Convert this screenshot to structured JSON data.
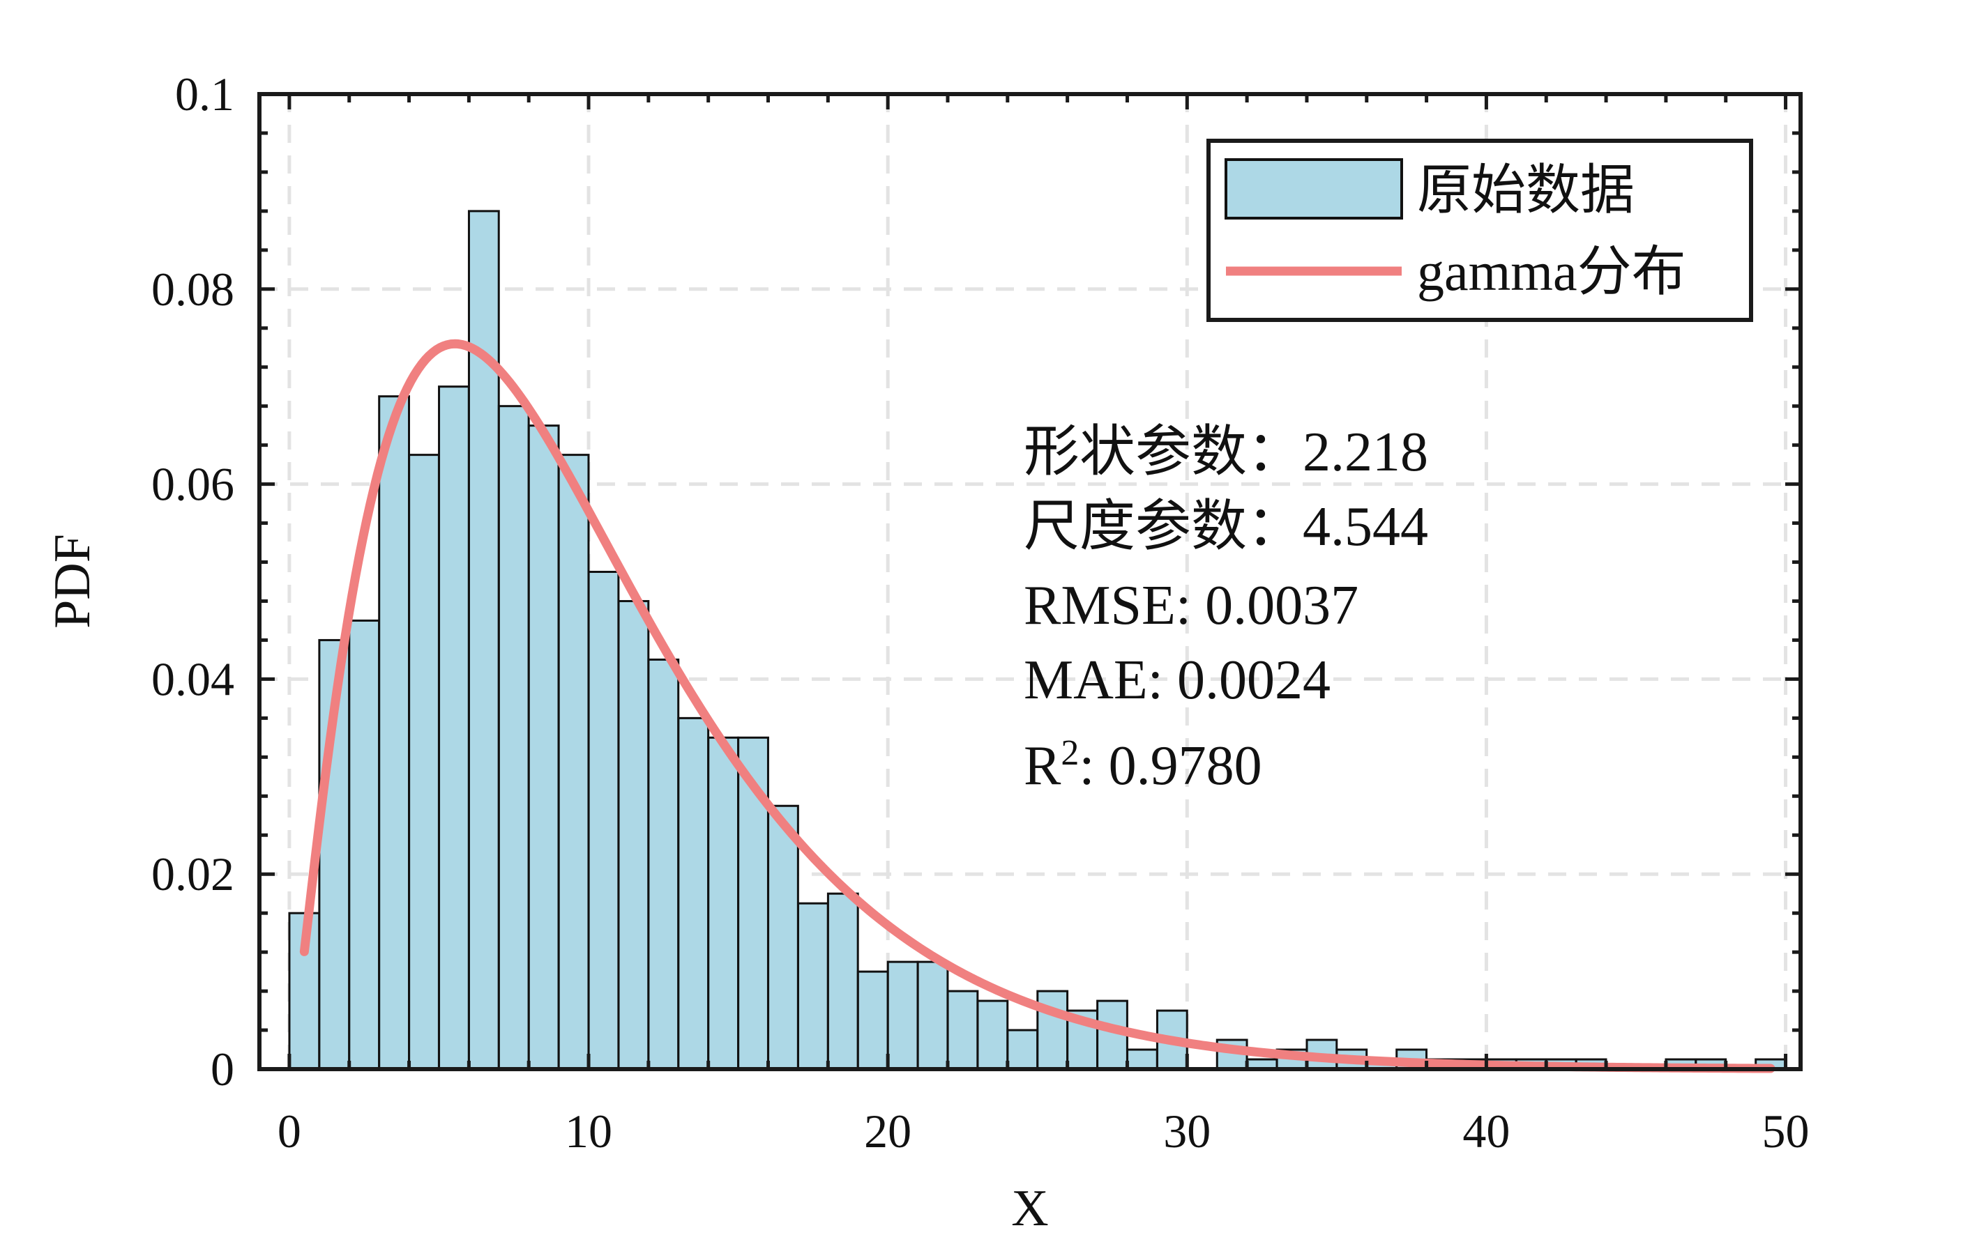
{
  "chart_data": {
    "type": "bar",
    "xlabel": "X",
    "ylabel": "PDF",
    "xlim": [
      -1,
      50.5
    ],
    "ylim": [
      0,
      0.1
    ],
    "x_ticks": [
      0,
      10,
      20,
      30,
      40,
      50
    ],
    "x_tick_labels": [
      "0",
      "10",
      "20",
      "30",
      "40",
      "50"
    ],
    "y_ticks": [
      0,
      0.02,
      0.04,
      0.06,
      0.08,
      0.1
    ],
    "y_tick_labels": [
      "0",
      "0.02",
      "0.04",
      "0.06",
      "0.08",
      "0.1"
    ],
    "grid": true,
    "legend_position": "top-right",
    "histogram": {
      "name": "原始数据",
      "bin_width": 0.997,
      "color": "#ADD8E6",
      "edge_color": "#111111",
      "bin_centers": [
        0.5,
        1.5,
        2.5,
        3.5,
        4.5,
        5.5,
        6.5,
        7.5,
        8.5,
        9.5,
        10.5,
        11.5,
        12.5,
        13.5,
        14.5,
        15.5,
        16.5,
        17.5,
        18.5,
        19.5,
        20.5,
        21.5,
        22.5,
        23.5,
        24.5,
        25.5,
        26.5,
        27.5,
        28.5,
        29.5,
        30.5,
        31.5,
        32.5,
        33.5,
        34.5,
        35.5,
        36.5,
        37.5,
        38.5,
        39.5,
        40.5,
        41.5,
        42.5,
        43.5,
        44.5,
        45.5,
        46.5,
        47.5,
        48.5,
        49.5
      ],
      "values": [
        0.016,
        0.044,
        0.046,
        0.069,
        0.063,
        0.07,
        0.088,
        0.068,
        0.066,
        0.063,
        0.051,
        0.048,
        0.042,
        0.036,
        0.034,
        0.034,
        0.027,
        0.017,
        0.018,
        0.01,
        0.011,
        0.011,
        0.008,
        0.007,
        0.004,
        0.008,
        0.006,
        0.007,
        0.002,
        0.006,
        0.0,
        0.003,
        0.001,
        0.002,
        0.003,
        0.002,
        0.001,
        0.002,
        0.001,
        0.001,
        0.001,
        0.001,
        0.001,
        0.001,
        0.0,
        0.0,
        0.001,
        0.001,
        0.0,
        0.001
      ]
    },
    "fit_line": {
      "name": "gamma分布",
      "color": "#F08080",
      "distribution": "gamma",
      "shape": 2.218,
      "scale": 4.544,
      "x_range": [
        0.5,
        49.5
      ]
    },
    "annotations": [
      {
        "label": "形状参数",
        "sep": "：",
        "value": "2.218"
      },
      {
        "label": "尺度参数",
        "sep": "：",
        "value": "4.544"
      },
      {
        "label": "RMSE",
        "sep": ": ",
        "value": "0.0037"
      },
      {
        "label": "MAE",
        "sep": ": ",
        "value": "0.0024"
      },
      {
        "label": "R",
        "sup": "2",
        "sep": ": ",
        "value": "0.9780"
      }
    ]
  }
}
